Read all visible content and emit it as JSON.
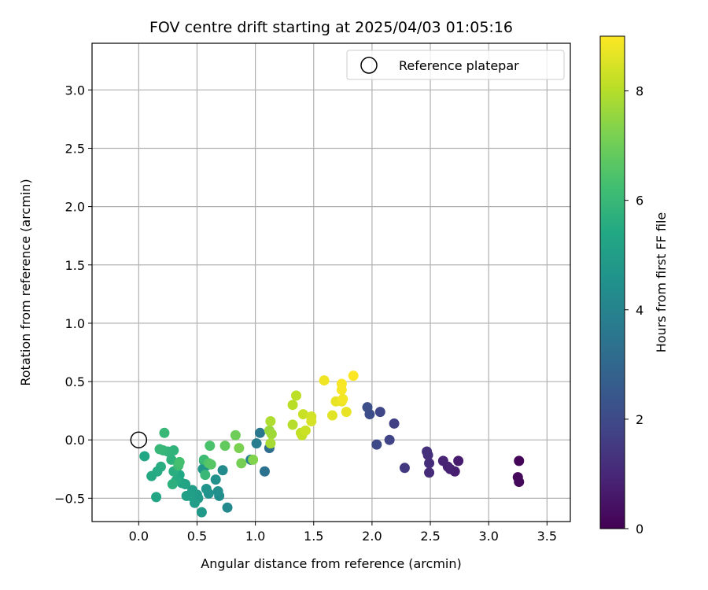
{
  "chart_data": {
    "type": "scatter",
    "title": "FOV centre drift starting at 2025/04/03 01:05:16",
    "xlabel": "Angular distance from reference (arcmin)",
    "ylabel": "Rotation from reference (arcmin)",
    "xlim": [
      -0.4,
      3.7
    ],
    "ylim": [
      -0.7,
      3.4
    ],
    "xticks": [
      "0.0",
      "0.5",
      "1.0",
      "1.5",
      "2.0",
      "2.5",
      "3.0",
      "3.5"
    ],
    "xtick_values": [
      0,
      0.5,
      1,
      1.5,
      2,
      2.5,
      3,
      3.5
    ],
    "yticks": [
      "−0.5",
      "0.0",
      "0.5",
      "1.0",
      "1.5",
      "2.0",
      "2.5",
      "3.0"
    ],
    "ytick_values": [
      -0.5,
      0,
      0.5,
      1,
      1.5,
      2,
      2.5,
      3
    ],
    "grid": true,
    "legend": {
      "position": "top-right",
      "entries": [
        "Reference platepar"
      ]
    },
    "reference_point": {
      "x": 0,
      "y": 0
    },
    "colorbar": {
      "label": "Hours from first FF file",
      "range": [
        0,
        9
      ],
      "ticks": [
        "0",
        "2",
        "4",
        "6",
        "8"
      ],
      "tick_values": [
        0,
        2,
        4,
        6,
        8
      ],
      "colormap": "viridis"
    },
    "points": [
      {
        "x": 3.26,
        "y": -0.18,
        "c": 0.1
      },
      {
        "x": 3.25,
        "y": -0.32,
        "c": 0.15
      },
      {
        "x": 3.26,
        "y": -0.36,
        "c": 0.2
      },
      {
        "x": 2.74,
        "y": -0.18,
        "c": 0.7
      },
      {
        "x": 2.71,
        "y": -0.27,
        "c": 0.75
      },
      {
        "x": 2.67,
        "y": -0.25,
        "c": 0.8
      },
      {
        "x": 2.65,
        "y": -0.23,
        "c": 0.85
      },
      {
        "x": 2.61,
        "y": -0.18,
        "c": 0.9
      },
      {
        "x": 2.49,
        "y": -0.28,
        "c": 1.1
      },
      {
        "x": 2.49,
        "y": -0.2,
        "c": 1.15
      },
      {
        "x": 2.48,
        "y": -0.13,
        "c": 1.2
      },
      {
        "x": 2.47,
        "y": -0.1,
        "c": 1.25
      },
      {
        "x": 2.28,
        "y": -0.24,
        "c": 1.5
      },
      {
        "x": 2.19,
        "y": 0.14,
        "c": 1.7
      },
      {
        "x": 2.15,
        "y": 0.0,
        "c": 1.8
      },
      {
        "x": 2.07,
        "y": 0.24,
        "c": 1.9
      },
      {
        "x": 2.04,
        "y": -0.04,
        "c": 2.0
      },
      {
        "x": 1.98,
        "y": 0.22,
        "c": 2.1
      },
      {
        "x": 1.96,
        "y": 0.28,
        "c": 2.15
      },
      {
        "x": 1.12,
        "y": -0.07,
        "c": 3.2
      },
      {
        "x": 1.08,
        "y": -0.27,
        "c": 3.4
      },
      {
        "x": 1.04,
        "y": 0.06,
        "c": 3.6
      },
      {
        "x": 1.01,
        "y": -0.03,
        "c": 3.8
      },
      {
        "x": 0.96,
        "y": -0.17,
        "c": 3.9
      },
      {
        "x": 0.76,
        "y": -0.58,
        "c": 4.2
      },
      {
        "x": 0.72,
        "y": -0.26,
        "c": 4.3
      },
      {
        "x": 0.69,
        "y": -0.48,
        "c": 4.4
      },
      {
        "x": 0.68,
        "y": -0.44,
        "c": 4.45
      },
      {
        "x": 0.66,
        "y": -0.34,
        "c": 4.5
      },
      {
        "x": 0.6,
        "y": -0.46,
        "c": 4.55
      },
      {
        "x": 0.58,
        "y": -0.22,
        "c": 4.6
      },
      {
        "x": 0.58,
        "y": -0.42,
        "c": 4.65
      },
      {
        "x": 0.56,
        "y": -0.18,
        "c": 4.7
      },
      {
        "x": 0.55,
        "y": -0.25,
        "c": 4.75
      },
      {
        "x": 0.54,
        "y": -0.62,
        "c": 4.8
      },
      {
        "x": 0.51,
        "y": -0.5,
        "c": 4.85
      },
      {
        "x": 0.5,
        "y": -0.47,
        "c": 4.9
      },
      {
        "x": 0.48,
        "y": -0.54,
        "c": 4.95
      },
      {
        "x": 0.46,
        "y": -0.43,
        "c": 5.0
      },
      {
        "x": 0.44,
        "y": -0.48,
        "c": 5.05
      },
      {
        "x": 0.41,
        "y": -0.48,
        "c": 5.1
      },
      {
        "x": 0.4,
        "y": -0.38,
        "c": 5.2
      },
      {
        "x": 0.37,
        "y": -0.37,
        "c": 5.3
      },
      {
        "x": 0.35,
        "y": -0.3,
        "c": 5.4
      },
      {
        "x": 0.32,
        "y": -0.35,
        "c": 5.5
      },
      {
        "x": 0.3,
        "y": -0.27,
        "c": 5.6
      },
      {
        "x": 0.29,
        "y": -0.38,
        "c": 5.7
      },
      {
        "x": 0.28,
        "y": -0.17,
        "c": 5.75
      },
      {
        "x": 0.3,
        "y": -0.09,
        "c": 5.8
      },
      {
        "x": 0.25,
        "y": -0.1,
        "c": 5.85
      },
      {
        "x": 0.21,
        "y": -0.09,
        "c": 5.9
      },
      {
        "x": 0.18,
        "y": -0.08,
        "c": 5.95
      },
      {
        "x": 0.22,
        "y": 0.06,
        "c": 6.0
      },
      {
        "x": 0.19,
        "y": -0.23,
        "c": 5.6
      },
      {
        "x": 0.16,
        "y": -0.27,
        "c": 5.5
      },
      {
        "x": 0.11,
        "y": -0.31,
        "c": 5.45
      },
      {
        "x": 0.15,
        "y": -0.49,
        "c": 5.3
      },
      {
        "x": 0.05,
        "y": -0.14,
        "c": 5.35
      },
      {
        "x": 0.34,
        "y": -0.22,
        "c": 6.2
      },
      {
        "x": 0.35,
        "y": -0.19,
        "c": 6.3
      },
      {
        "x": 0.57,
        "y": -0.3,
        "c": 6.0
      },
      {
        "x": 0.56,
        "y": -0.17,
        "c": 6.1
      },
      {
        "x": 0.6,
        "y": -0.2,
        "c": 6.5
      },
      {
        "x": 0.62,
        "y": -0.21,
        "c": 6.6
      },
      {
        "x": 0.61,
        "y": -0.05,
        "c": 6.4
      },
      {
        "x": 0.74,
        "y": -0.05,
        "c": 6.8
      },
      {
        "x": 0.83,
        "y": 0.04,
        "c": 7.0
      },
      {
        "x": 0.86,
        "y": -0.07,
        "c": 7.2
      },
      {
        "x": 0.88,
        "y": -0.2,
        "c": 7.1
      },
      {
        "x": 0.98,
        "y": -0.17,
        "c": 7.3
      },
      {
        "x": 1.12,
        "y": 0.08,
        "c": 7.6
      },
      {
        "x": 1.14,
        "y": 0.05,
        "c": 7.7
      },
      {
        "x": 1.13,
        "y": -0.03,
        "c": 7.8
      },
      {
        "x": 1.13,
        "y": 0.16,
        "c": 7.9
      },
      {
        "x": 1.32,
        "y": 0.13,
        "c": 8.0
      },
      {
        "x": 1.32,
        "y": 0.3,
        "c": 8.05
      },
      {
        "x": 1.35,
        "y": 0.38,
        "c": 8.1
      },
      {
        "x": 1.39,
        "y": 0.06,
        "c": 8.15
      },
      {
        "x": 1.4,
        "y": 0.04,
        "c": 8.2
      },
      {
        "x": 1.41,
        "y": 0.22,
        "c": 8.25
      },
      {
        "x": 1.43,
        "y": 0.08,
        "c": 8.3
      },
      {
        "x": 1.48,
        "y": 0.2,
        "c": 8.4
      },
      {
        "x": 1.48,
        "y": 0.16,
        "c": 8.45
      },
      {
        "x": 1.59,
        "y": 0.51,
        "c": 8.8
      },
      {
        "x": 1.66,
        "y": 0.21,
        "c": 8.6
      },
      {
        "x": 1.69,
        "y": 0.33,
        "c": 8.7
      },
      {
        "x": 1.74,
        "y": 0.33,
        "c": 8.75
      },
      {
        "x": 1.74,
        "y": 0.48,
        "c": 8.9
      },
      {
        "x": 1.74,
        "y": 0.43,
        "c": 8.9
      },
      {
        "x": 1.75,
        "y": 0.35,
        "c": 8.85
      },
      {
        "x": 1.78,
        "y": 0.24,
        "c": 8.7
      },
      {
        "x": 1.84,
        "y": 0.55,
        "c": 9.0
      }
    ]
  }
}
